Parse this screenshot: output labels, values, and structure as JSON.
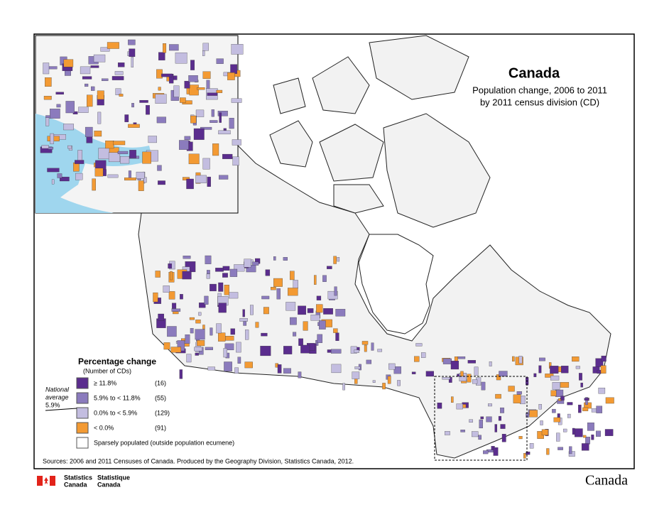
{
  "header": {
    "title": "Canada",
    "subtitle": [
      "Population change, 2006 to 2011",
      "by 2011 census division (CD)"
    ]
  },
  "legend": {
    "title": "Percentage change",
    "subtitle": "(Number of CDs)",
    "items": [
      {
        "label": "≥ 11.8%",
        "count": "(16)",
        "color": "#5b2d8e"
      },
      {
        "label": "5.9% to < 11.8%",
        "count": "(55)",
        "color": "#8b7bbd"
      },
      {
        "label": "0.0% to < 5.9%",
        "count": "(129)",
        "color": "#c3bde0"
      },
      {
        "label": "< 0.0%",
        "count": "(91)",
        "color": "#f39a33"
      },
      {
        "label": "Sparsely populated (outside population ecumene)",
        "color": "#ffffff"
      }
    ],
    "national_average": [
      "National",
      "average",
      "5.9%"
    ]
  },
  "sources": "Sources: 2006 and 2011 Censuses of Canada. Produced by the Geography Division, Statistics Canada, 2012.",
  "footer": {
    "agency_en": [
      "Statistics",
      "Canada"
    ],
    "agency_fr": [
      "Statistique",
      "Canada"
    ],
    "wordmark": "Canada"
  }
}
